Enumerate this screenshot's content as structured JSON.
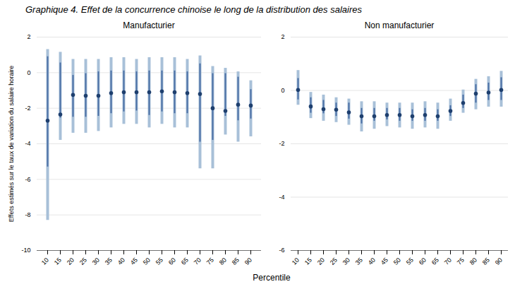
{
  "title": "Graphique 4. Effet de la concurrence chinoise le long de la distribution des salaires",
  "xlabel": "Percentile",
  "chart_data": [
    {
      "type": "dot",
      "title": "Manufacturier",
      "ylabel": "Effets estimés sur le taux de variation du salaire horaire",
      "categories": [
        10,
        15,
        20,
        25,
        30,
        35,
        40,
        45,
        50,
        55,
        60,
        65,
        70,
        75,
        80,
        85,
        90
      ],
      "values": [
        -2.7,
        -2.35,
        -1.25,
        -1.3,
        -1.3,
        -1.15,
        -1.1,
        -1.1,
        -1.1,
        -1.05,
        -1.1,
        -1.15,
        -1.2,
        -2.0,
        -2.15,
        -1.8,
        -1.85
      ],
      "color": "#1e3f6e",
      "intervals": [
        {
          "low": [
            -8.3,
            -3.8,
            -3.4,
            -3.4,
            -3.3,
            -3.1,
            -2.9,
            -2.9,
            -3.1,
            -2.9,
            -3.1,
            -3.1,
            -5.4,
            -5.4,
            -3.5,
            -3.9,
            -3.6
          ],
          "high": [
            1.3,
            1.15,
            0.75,
            0.75,
            0.75,
            0.85,
            0.85,
            0.75,
            0.85,
            0.85,
            0.85,
            0.75,
            0.95,
            0.35,
            0.25,
            0.05,
            -0.45
          ],
          "color": "#a8c0d8"
        },
        {
          "low": [
            -5.3,
            -2.55,
            -2.5,
            -2.5,
            -2.45,
            -2.3,
            -2.2,
            -2.15,
            -2.4,
            -2.2,
            -2.3,
            -2.3,
            -3.9,
            -3.8,
            -2.45,
            -2.7,
            -2.6
          ],
          "high": [
            0.9,
            0.55,
            -0.15,
            -0.05,
            0.05,
            0.1,
            0.1,
            0.05,
            0.1,
            0.1,
            0.1,
            0.05,
            0.5,
            -0.05,
            -0.05,
            -0.25,
            -0.95
          ],
          "color": "#4a6fa5"
        }
      ],
      "ylim": [
        -10,
        2
      ],
      "yticks": [
        -10,
        -8,
        -6,
        -4,
        -2,
        0,
        2
      ],
      "grid": true
    },
    {
      "type": "dot",
      "title": "Non manufacturier",
      "categories": [
        10,
        15,
        20,
        25,
        30,
        35,
        40,
        45,
        50,
        55,
        60,
        65,
        70,
        75,
        80,
        85,
        90
      ],
      "values": [
        0.02,
        -0.6,
        -0.7,
        -0.72,
        -0.82,
        -0.97,
        -0.97,
        -0.92,
        -0.92,
        -0.97,
        -0.92,
        -0.97,
        -0.77,
        -0.47,
        -0.12,
        -0.08,
        0.02
      ],
      "color": "#1e3f6e",
      "intervals": [
        {
          "low": [
            -0.55,
            -1.05,
            -1.15,
            -1.2,
            -1.3,
            -1.55,
            -1.45,
            -1.35,
            -1.4,
            -1.45,
            -1.4,
            -1.45,
            -1.15,
            -0.85,
            -0.72,
            -0.62,
            -0.62
          ],
          "high": [
            0.75,
            -0.07,
            -0.17,
            -0.27,
            -0.32,
            -0.42,
            -0.42,
            -0.47,
            -0.47,
            -0.47,
            -0.42,
            -0.47,
            -0.32,
            0.02,
            0.42,
            0.52,
            0.72
          ],
          "color": "#a8c0d8"
        },
        {
          "low": [
            -0.35,
            -0.85,
            -0.87,
            -0.97,
            -1.07,
            -1.25,
            -1.15,
            -1.1,
            -1.15,
            -1.15,
            -1.15,
            -1.15,
            -0.97,
            -0.67,
            -0.47,
            -0.37,
            -0.37
          ],
          "high": [
            0.45,
            -0.27,
            -0.37,
            -0.47,
            -0.47,
            -0.67,
            -0.67,
            -0.67,
            -0.67,
            -0.72,
            -0.67,
            -0.72,
            -0.57,
            -0.17,
            0.22,
            0.28,
            0.48
          ],
          "color": "#4a6fa5"
        }
      ],
      "ylim": [
        -6,
        2
      ],
      "yticks": [
        -6,
        -4,
        -2,
        0,
        2
      ],
      "grid": true
    }
  ]
}
